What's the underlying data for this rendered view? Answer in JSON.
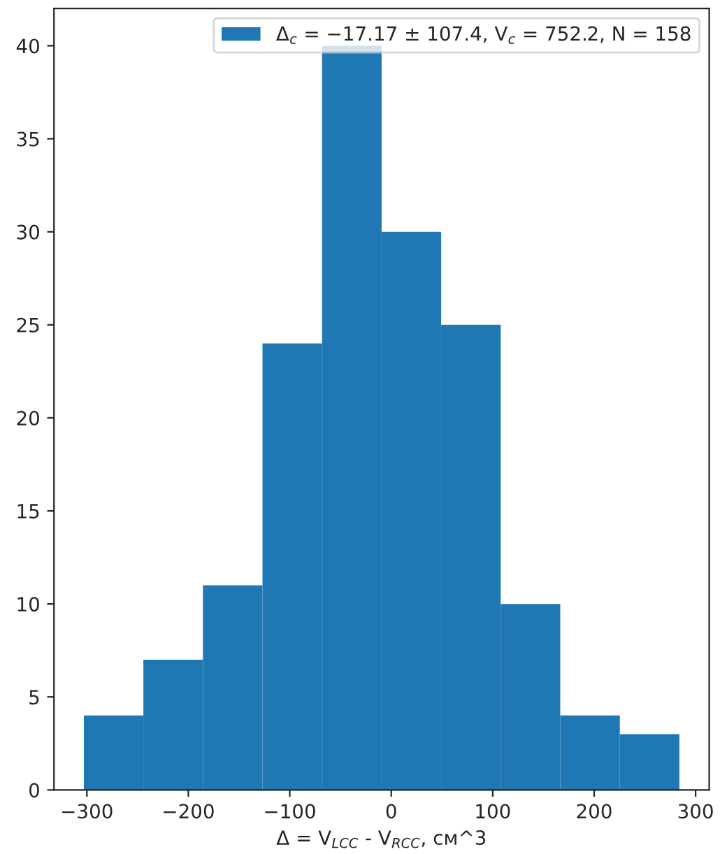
{
  "chart_data": {
    "type": "histogram",
    "xlabel": "Δ = V$_{LCC}$ - V$_{RCC}$, см^3",
    "bins": [
      -303,
      -244.3,
      -185.6,
      -126.9,
      -68.2,
      -9.5,
      49.2,
      107.9,
      166.6,
      225.3,
      284
    ],
    "series": [
      {
        "name": "Δ$_{c}$ = −17.17 ± 107.4, V$_{c}$ = 752.2, N = 158",
        "color": "#1f77b4",
        "values": [
          4,
          7,
          11,
          24,
          40,
          30,
          25,
          10,
          4,
          3
        ]
      }
    ],
    "xlim": [
      -332.4,
      313.4
    ],
    "ylim": [
      0,
      42
    ],
    "xticks": [
      -300,
      -200,
      -100,
      0,
      100,
      200,
      300
    ],
    "yticks": [
      0,
      5,
      10,
      15,
      20,
      25,
      30,
      35,
      40
    ],
    "legend": "top right",
    "grid": false
  }
}
